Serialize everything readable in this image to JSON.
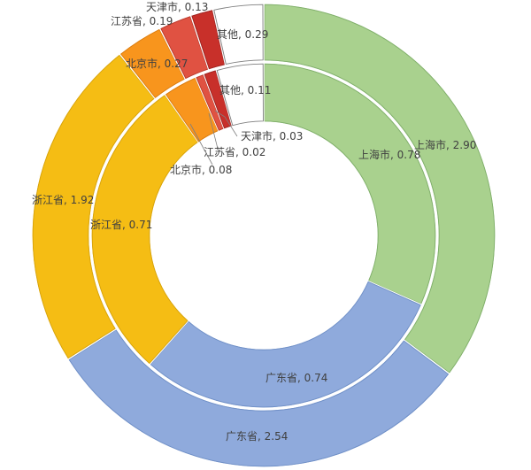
{
  "chart_data": {
    "type": "pie",
    "variant": "double-doughnut",
    "title": "",
    "rings": [
      {
        "ring": "outer",
        "slices": [
          {
            "label": "上海市",
            "value": 2.9,
            "text": "上海市, 2.90",
            "color": "#a9d18e"
          },
          {
            "label": "广东省",
            "value": 2.54,
            "text": "广东省, 2.54",
            "color": "#8faadc"
          },
          {
            "label": "浙江省",
            "value": 1.92,
            "text": "浙江省, 1.92",
            "color": "#f5bd14"
          },
          {
            "label": "北京市",
            "value": 0.27,
            "text": "北京市, 0.27",
            "color": "#f8951d"
          },
          {
            "label": "江苏省",
            "value": 0.19,
            "text": "江苏省, 0.19",
            "color": "#e05242"
          },
          {
            "label": "天津市",
            "value": 0.13,
            "text": "天津市, 0.13",
            "color": "#c8302a"
          },
          {
            "label": "其他",
            "value": 0.29,
            "text": "其他, 0.29",
            "color": "#ffffff"
          }
        ]
      },
      {
        "ring": "inner",
        "slices": [
          {
            "label": "上海市",
            "value": 0.78,
            "text": "上海市, 0.78",
            "color": "#a9d18e"
          },
          {
            "label": "广东省",
            "value": 0.74,
            "text": "广东省, 0.74",
            "color": "#8faadc"
          },
          {
            "label": "浙江省",
            "value": 0.71,
            "text": "浙江省, 0.71",
            "color": "#f5bd14"
          },
          {
            "label": "北京市",
            "value": 0.08,
            "text": "北京市, 0.08",
            "color": "#f8951d"
          },
          {
            "label": "江苏省",
            "value": 0.02,
            "text": "江苏省, 0.02",
            "color": "#e05242"
          },
          {
            "label": "天津市",
            "value": 0.03,
            "text": "天津市, 0.03",
            "color": "#c8302a"
          },
          {
            "label": "其他",
            "value": 0.11,
            "text": "其他, 0.11",
            "color": "#ffffff"
          }
        ]
      }
    ],
    "legend": "none"
  }
}
